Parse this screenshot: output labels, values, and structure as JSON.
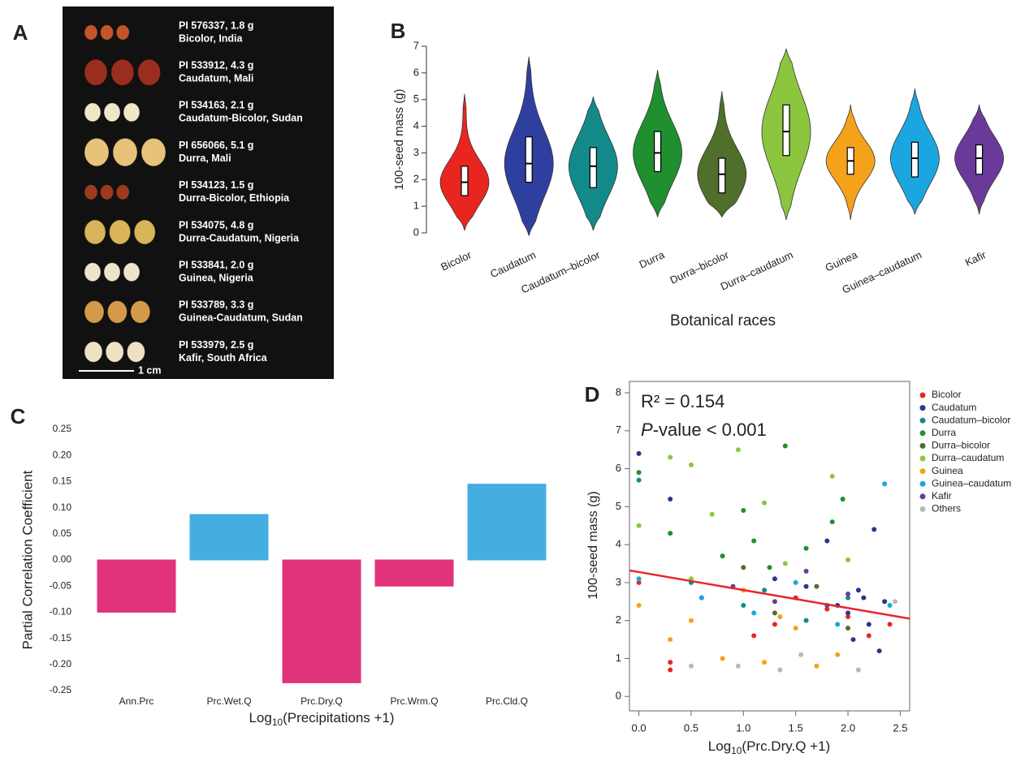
{
  "panel_labels": [
    "A",
    "B",
    "C",
    "D"
  ],
  "photo": {
    "rows": [
      {
        "line1": "PI 576337, 1.8 g",
        "line2": "Bicolor, India"
      },
      {
        "line1": "PI 533912, 4.3 g",
        "line2": "Caudatum, Mali"
      },
      {
        "line1": "PI 534163, 2.1 g",
        "line2": "Caudatum-Bicolor, Sudan"
      },
      {
        "line1": "PI 656066, 5.1 g",
        "line2": "Durra, Mali"
      },
      {
        "line1": "PI 534123, 1.5 g",
        "line2": "Durra-Bicolor, Ethiopia"
      },
      {
        "line1": "PI 534075, 4.8 g",
        "line2": "Durra-Caudatum, Nigeria"
      },
      {
        "line1": "PI 533841, 2.0 g",
        "line2": "Guinea, Nigeria"
      },
      {
        "line1": "PI 533789, 3.3 g",
        "line2": "Guinea-Caudatum, Sudan"
      },
      {
        "line1": "PI 533979, 2.5 g",
        "line2": "Kafir, South Africa"
      }
    ],
    "scale_bar": "1 cm"
  },
  "chart_data": [
    {
      "type": "violin",
      "y_label": "100-seed mass (g)",
      "x_label": "Botanical races",
      "categories": [
        "Bicolor",
        "Caudatum",
        "Caudatum–bicolor",
        "Durra",
        "Durra–bicolor",
        "Durra–caudatum",
        "Guinea",
        "Guinea–caudatum",
        "Kafir"
      ],
      "colors": [
        "#e8261f",
        "#2f3f9f",
        "#128a8a",
        "#1f8f2f",
        "#4f6f2a",
        "#8cc63f",
        "#f5a21b",
        "#1ba6e0",
        "#6a3a9a"
      ],
      "min": [
        0.1,
        -0.1,
        0.1,
        0.6,
        0.6,
        0.5,
        0.5,
        0.7,
        0.7
      ],
      "q1": [
        1.4,
        1.9,
        1.7,
        2.3,
        1.5,
        2.9,
        2.2,
        2.1,
        2.2
      ],
      "median": [
        1.9,
        2.6,
        2.5,
        3.0,
        2.2,
        3.8,
        2.7,
        2.8,
        2.8
      ],
      "q3": [
        2.5,
        3.6,
        3.2,
        3.8,
        2.8,
        4.8,
        3.2,
        3.4,
        3.3
      ],
      "max": [
        5.2,
        6.6,
        5.1,
        6.1,
        5.3,
        6.9,
        4.8,
        5.4,
        4.8
      ],
      "ylim": [
        0,
        7
      ],
      "yticks": [
        0,
        1,
        2,
        3,
        4,
        5,
        6,
        7
      ]
    },
    {
      "type": "bar",
      "y_label": "Partial Correlation Coefficient",
      "x_label": [
        "Log",
        "10",
        "(Precipitations +1)"
      ],
      "categories": [
        "Ann.Prc",
        "Prc.Wet.Q",
        "Prc.Dry.Q",
        "Prc.Wrm.Q",
        "Prc.Cld.Q"
      ],
      "values": [
        -0.1,
        0.087,
        -0.235,
        -0.05,
        0.145
      ],
      "colors": [
        "#e0337a",
        "#45aee0",
        "#e0337a",
        "#e0337a",
        "#45aee0"
      ],
      "ylim": [
        -0.25,
        0.25
      ],
      "yticks": [
        0.25,
        {
          "value": 0.2,
          "label": "0.20"
        },
        0.15,
        {
          "value": 0.1,
          "label": "0.10"
        },
        0.05,
        {
          "value": 0,
          "label": "0.00"
        },
        -0.05,
        {
          "value": -0.1,
          "label": "-0.10"
        },
        -0.15,
        {
          "value": -0.2,
          "label": "-0.20"
        },
        -0.25
      ]
    },
    {
      "type": "scatter",
      "y_label": "100-seed mass (g)",
      "x_label": [
        "Log",
        "10",
        "(Prc.Dry.Q +1)"
      ],
      "annotations": {
        "r2": "R² = 0.154",
        "p": [
          "P",
          "-value < 0.001"
        ]
      },
      "xlim": [
        -0.09,
        2.59
      ],
      "ylim": [
        -0.38,
        8.3
      ],
      "xticks": [
        {
          "value": 0,
          "label": "0.0"
        },
        0.5,
        {
          "value": 1,
          "label": "1.0"
        },
        1.5,
        {
          "value": 2,
          "label": "2.0"
        },
        2.5
      ],
      "yticks": [
        0,
        1,
        2,
        3,
        4,
        5,
        6,
        7,
        8
      ],
      "fit": {
        "x": [
          -0.09,
          2.59
        ],
        "y": [
          3.32,
          2.05
        ],
        "color": "#e8262a"
      },
      "series": [
        {
          "name": "Bicolor",
          "color": "#e8261f",
          "x": [
            0,
            0.3,
            0.3,
            1.1,
            1.3,
            1.5,
            1.8,
            2.0,
            2.2,
            2.4
          ],
          "values": [
            3.0,
            0.7,
            0.9,
            1.6,
            1.9,
            2.6,
            2.3,
            2.1,
            1.6,
            1.9
          ]
        },
        {
          "name": "Caudatum",
          "color": "#27378f",
          "x": [
            0,
            0.3,
            1.3,
            1.6,
            1.8,
            1.9,
            2.0,
            2.05,
            2.1,
            2.15,
            2.2,
            2.25,
            2.3,
            2.35
          ],
          "values": [
            6.4,
            5.2,
            3.1,
            2.9,
            4.1,
            2.4,
            2.2,
            1.5,
            2.8,
            2.6,
            1.9,
            4.4,
            1.2,
            2.5
          ]
        },
        {
          "name": "Caudatum–bicolor",
          "color": "#128a8a",
          "x": [
            0,
            0.5,
            1.0,
            1.2,
            1.6,
            2.0
          ],
          "values": [
            5.7,
            3.0,
            2.4,
            2.8,
            2.0,
            2.6
          ]
        },
        {
          "name": "Durra",
          "color": "#1f8f2f",
          "x": [
            0,
            0.3,
            0.8,
            1.0,
            1.1,
            1.25,
            1.4,
            1.6,
            1.85,
            1.95
          ],
          "values": [
            5.9,
            4.3,
            3.7,
            4.9,
            4.1,
            3.4,
            6.6,
            3.9,
            4.6,
            5.2
          ]
        },
        {
          "name": "Durra–bicolor",
          "color": "#4f6f2a",
          "x": [
            0.6,
            1.0,
            1.3,
            1.7,
            2.0
          ],
          "values": [
            2.6,
            3.4,
            2.2,
            2.9,
            1.8
          ]
        },
        {
          "name": "Durra–caudatum",
          "color": "#8cc63f",
          "x": [
            0,
            0.3,
            0.5,
            0.5,
            0.7,
            0.95,
            1.2,
            1.4,
            1.85,
            2.0
          ],
          "values": [
            4.5,
            6.3,
            6.1,
            3.1,
            4.8,
            6.5,
            5.1,
            3.5,
            5.8,
            3.6
          ]
        },
        {
          "name": "Guinea",
          "color": "#f5a21b",
          "x": [
            0,
            0.3,
            0.5,
            0.8,
            1.0,
            1.2,
            1.35,
            1.5,
            1.7,
            1.9,
            2.1
          ],
          "values": [
            2.4,
            1.5,
            2.0,
            1.0,
            2.8,
            0.9,
            2.1,
            1.8,
            0.8,
            1.1,
            0.7
          ]
        },
        {
          "name": "Guinea–caudatum",
          "color": "#1ba6e0",
          "x": [
            0,
            0.6,
            1.1,
            1.5,
            1.9,
            2.35,
            2.4
          ],
          "values": [
            3.1,
            2.6,
            2.2,
            3.0,
            1.9,
            5.6,
            2.4
          ]
        },
        {
          "name": "Kafir",
          "color": "#6a3a9a",
          "x": [
            0.9,
            1.3,
            1.6,
            1.8,
            2.0
          ],
          "values": [
            2.9,
            2.5,
            3.3,
            2.4,
            2.7
          ]
        },
        {
          "name": "Others",
          "color": "#b8b8b8",
          "x": [
            0.5,
            0.95,
            1.35,
            1.55,
            2.1,
            2.45
          ],
          "values": [
            0.8,
            0.8,
            0.7,
            1.1,
            0.7,
            2.5
          ]
        }
      ]
    }
  ]
}
